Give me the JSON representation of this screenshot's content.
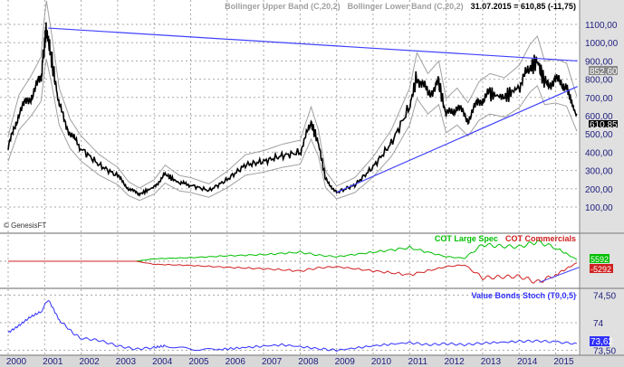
{
  "header": {
    "upper_band": "Bollinger Upper Band (C,20,2)",
    "lower_band": "Bollinger Lower Band (C,20,2)",
    "last_quote": "31.07.2015 = 610,85 (-11,75)"
  },
  "watermark": "© GenesisFT",
  "colors": {
    "price": "#000000",
    "bands": "#a0a0a0",
    "trendline": "#4040ff",
    "large_spec": "#00c000",
    "commercials": "#d02020",
    "stoch": "#3030ff",
    "axis_text": "#202080",
    "panel_bg": "#d8d8d8"
  },
  "chart_data": [
    {
      "type": "line",
      "panel": "price",
      "yticks": [
        "1100,00",
        "1000,00",
        "900,00",
        "800,00",
        "700,00",
        "600,00",
        "500,00",
        "400,00",
        "300,00",
        "200,00",
        "100,00"
      ],
      "ytick_values": [
        1100,
        1000,
        900,
        800,
        700,
        600,
        500,
        400,
        300,
        200,
        100
      ],
      "ylim": [
        50,
        1200
      ],
      "series": [
        {
          "name": "",
          "x": [
            2000.0,
            2000.3,
            2000.6,
            2000.9,
            2001.0,
            2001.05,
            2001.2,
            2001.4,
            2001.7,
            2002.0,
            2002.5,
            2003.0,
            2003.3,
            2003.6,
            2004.0,
            2004.3,
            2004.7,
            2005.0,
            2005.5,
            2006.0,
            2006.5,
            2007.0,
            2007.5,
            2008.0,
            2008.3,
            2008.5,
            2008.7,
            2009.0,
            2009.5,
            2010.0,
            2010.5,
            2011.0,
            2011.2,
            2011.5,
            2011.8,
            2012.0,
            2012.3,
            2012.6,
            2012.9,
            2013.2,
            2013.6,
            2014.0,
            2014.3,
            2014.5,
            2014.7,
            2015.0,
            2015.3,
            2015.58
          ],
          "y": [
            420,
            620,
            700,
            800,
            1000,
            1070,
            900,
            650,
            500,
            420,
            330,
            270,
            200,
            170,
            210,
            280,
            230,
            220,
            190,
            250,
            330,
            350,
            380,
            400,
            560,
            450,
            250,
            180,
            220,
            320,
            450,
            650,
            820,
            720,
            780,
            600,
            650,
            580,
            680,
            720,
            700,
            760,
            860,
            900,
            780,
            790,
            770,
            611
          ]
        }
      ],
      "bands": [
        "Bollinger Upper Band (C,20,2)",
        "Bollinger Lower Band (C,20,2)"
      ],
      "trendlines": [
        {
          "from": [
            2001.1,
            1080
          ],
          "to": [
            2015.6,
            900
          ]
        },
        {
          "from": [
            2009.0,
            180
          ],
          "to": [
            2015.6,
            760
          ]
        }
      ],
      "value_labels": [
        "852,60",
        "610,85"
      ]
    },
    {
      "type": "line",
      "panel": "cot",
      "series": [
        {
          "name": "COT Large Spec",
          "x": [
            2000,
            2003.5,
            2004,
            2005,
            2006,
            2007,
            2008,
            2008.5,
            2009,
            2010,
            2011,
            2012,
            2012.5,
            2013,
            2013.5,
            2014,
            2014.5,
            2015,
            2015.58
          ],
          "y": [
            0,
            0,
            8000,
            12000,
            18000,
            22000,
            30000,
            20000,
            15000,
            30000,
            45000,
            15000,
            10000,
            55000,
            50000,
            48000,
            65000,
            45000,
            5592
          ]
        },
        {
          "name": "COT Commercials",
          "x": [
            2000,
            2003.5,
            2004,
            2005,
            2006,
            2007,
            2008,
            2008.5,
            2009,
            2010,
            2011,
            2012,
            2012.5,
            2013,
            2013.5,
            2014,
            2014.5,
            2015,
            2015.58
          ],
          "y": [
            0,
            0,
            -10000,
            -14000,
            -20000,
            -25000,
            -32000,
            -22000,
            -18000,
            -32000,
            -45000,
            -18000,
            -12000,
            -55000,
            -52000,
            -50000,
            -70000,
            -45000,
            -5292
          ]
        }
      ],
      "value_labels": [
        "5592",
        "-5292"
      ]
    },
    {
      "type": "line",
      "panel": "stoch",
      "title": "Value Bonds Stoch (T0,0,5)",
      "yticks": [
        "74,50",
        "74",
        "73,50"
      ],
      "ytick_values": [
        74.5,
        74,
        73.5
      ],
      "ylim": [
        73.45,
        74.6
      ],
      "series": [
        {
          "name": "Value Bonds Stoch (T0,0,5)",
          "x": [
            2000,
            2000.3,
            2000.6,
            2000.9,
            2001.1,
            2001.4,
            2001.8,
            2002.0,
            2002.5,
            2003.0,
            2003.5,
            2004.0,
            2004.3,
            2005.0,
            2005.7,
            2006.5,
            2007.5,
            2008.5,
            2009.0,
            2010.0,
            2011.0,
            2011.5,
            2012.0,
            2012.5,
            2013.0,
            2014.0,
            2014.5,
            2015.0,
            2015.58
          ],
          "y": [
            73.82,
            73.95,
            74.1,
            74.2,
            74.42,
            74.05,
            73.8,
            73.72,
            73.68,
            73.58,
            73.52,
            73.55,
            73.58,
            73.52,
            73.51,
            73.55,
            73.6,
            73.53,
            73.5,
            73.58,
            73.64,
            73.6,
            73.62,
            73.6,
            73.63,
            73.66,
            73.67,
            73.65,
            73.62
          ]
        }
      ],
      "value_labels": [
        "73,62"
      ]
    }
  ],
  "xaxis": {
    "labels": [
      "2000",
      "2001",
      "2002",
      "2003",
      "2004",
      "2005",
      "2006",
      "2007",
      "2008",
      "2009",
      "2010",
      "2011",
      "2012",
      "2013",
      "2014",
      "2015"
    ]
  }
}
